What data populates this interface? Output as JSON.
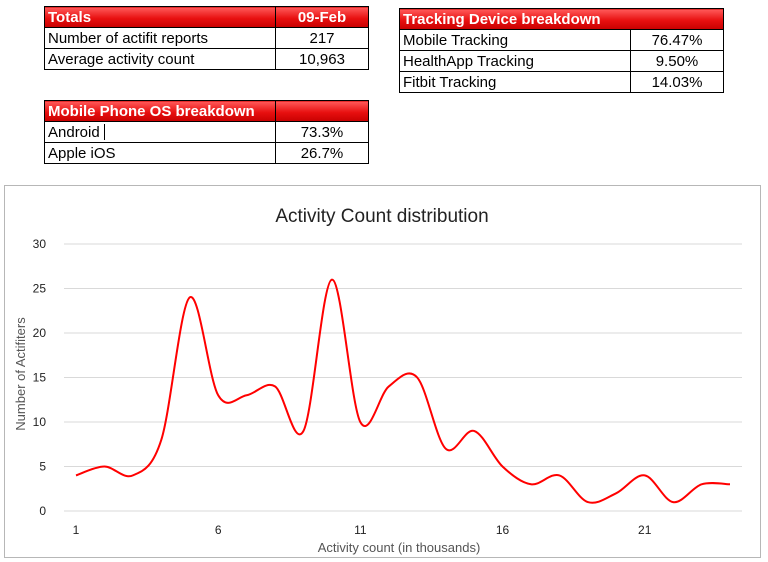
{
  "totals": {
    "header_label": "Totals",
    "header_date": "09-Feb",
    "rows": [
      {
        "label": "Number of actifit reports",
        "value": "217"
      },
      {
        "label": "Average activity count",
        "value": "10,963"
      }
    ]
  },
  "tracking": {
    "header_label": "Tracking Device breakdown",
    "rows": [
      {
        "label": "Mobile Tracking",
        "value": "76.47%"
      },
      {
        "label": "HealthApp Tracking",
        "value": "9.50%"
      },
      {
        "label": "Fitbit Tracking",
        "value": "14.03%"
      }
    ]
  },
  "os": {
    "header_label": "Mobile Phone OS breakdown",
    "rows": [
      {
        "label": "Android",
        "value": "73.3%"
      },
      {
        "label": "Apple iOS",
        "value": "26.7%"
      }
    ]
  },
  "colors": {
    "header_red": "#e81010",
    "series_line": "#ff0000",
    "gridline": "#d9d9d9"
  },
  "chart_data": {
    "type": "line",
    "title": "Activity Count distribution",
    "xlabel": "Activity count (in thousands)",
    "ylabel": "Number of Actifiters",
    "x": [
      1,
      2,
      3,
      4,
      5,
      6,
      7,
      8,
      9,
      10,
      11,
      12,
      13,
      14,
      15,
      16,
      17,
      18,
      19,
      20,
      21,
      22,
      23,
      24
    ],
    "series": [
      {
        "values": [
          4,
          5,
          4,
          8,
          24,
          13,
          13,
          14,
          9,
          26,
          10,
          14,
          15,
          7,
          9,
          5,
          3,
          4,
          1,
          2,
          4,
          1,
          3,
          3
        ]
      }
    ],
    "xticks": [
      1,
      6,
      11,
      16,
      21
    ],
    "yticks": [
      0,
      5,
      10,
      15,
      20,
      25,
      30
    ],
    "ylim": [
      0,
      30
    ],
    "xlim": [
      1,
      24
    ],
    "grid": true,
    "smooth": true
  }
}
